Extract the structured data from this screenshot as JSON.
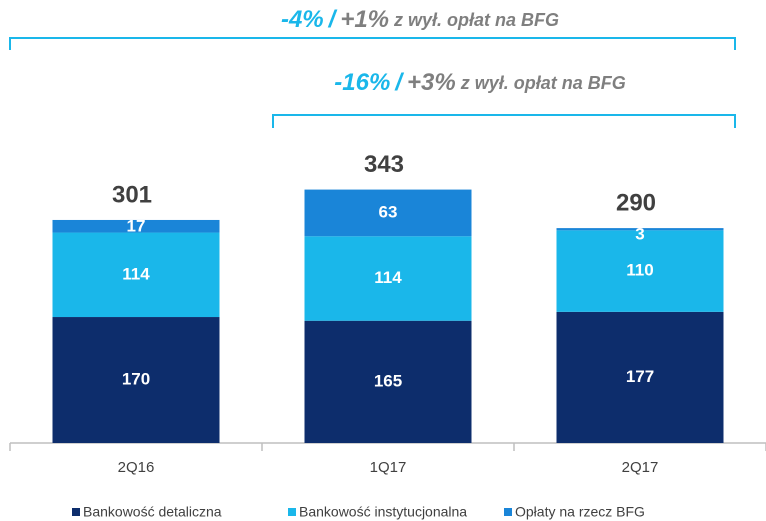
{
  "chart_data": {
    "type": "stacked_bar",
    "categories": [
      "2Q16",
      "1Q17",
      "2Q17"
    ],
    "series": [
      {
        "name": "Bankowość detaliczna",
        "color": "#0d2d6c",
        "values": [
          170,
          165,
          177
        ]
      },
      {
        "name": "Bankowość instytucjonalna",
        "color": "#1ab7ea",
        "values": [
          114,
          114,
          110
        ]
      },
      {
        "name": "Opłaty na rzecz BFG",
        "color": "#1a85d8",
        "values": [
          17,
          63,
          3
        ]
      }
    ],
    "totals": [
      301,
      343,
      290
    ],
    "annotations": [
      {
        "parts": [
          "-4%",
          "/",
          "+1%",
          "z wył. opłat na BFG"
        ]
      },
      {
        "parts": [
          "-16%",
          "/",
          "+3%",
          "z wył. opłat na BFG"
        ]
      }
    ],
    "legend": "bottom"
  }
}
